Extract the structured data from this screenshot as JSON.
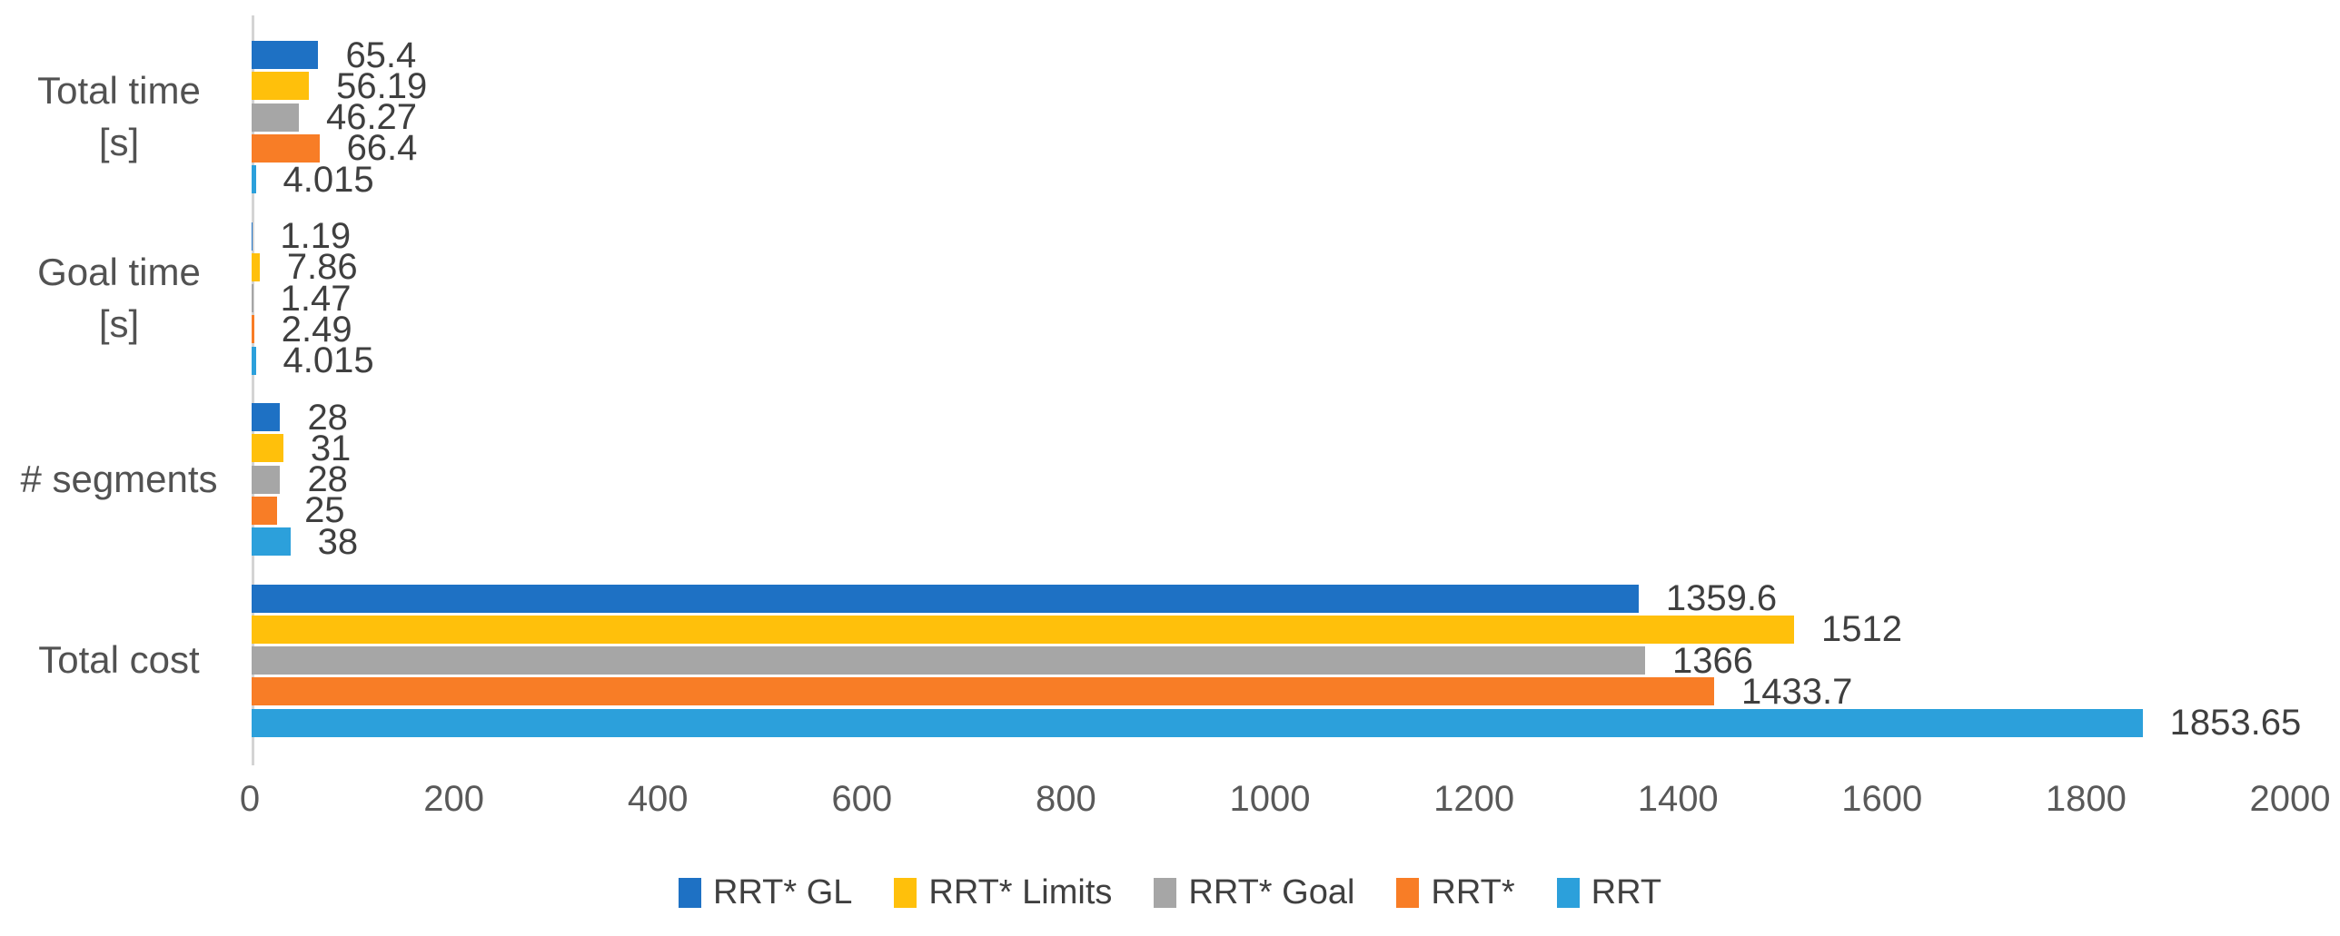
{
  "chart_data": {
    "type": "bar",
    "orientation": "horizontal",
    "title": "",
    "xlabel": "",
    "ylabel": "",
    "xlim": [
      0,
      2000
    ],
    "xticks": [
      "0",
      "200",
      "400",
      "600",
      "800",
      "1000",
      "1200",
      "1400",
      "1600",
      "1800",
      "2000"
    ],
    "grid": false,
    "legend_position": "bottom",
    "categories": [
      {
        "id": "total-time",
        "lines": [
          "Total time",
          "[s]"
        ]
      },
      {
        "id": "goal-time",
        "lines": [
          "Goal time",
          "[s]"
        ]
      },
      {
        "id": "segments",
        "lines": [
          "# segments"
        ]
      },
      {
        "id": "total-cost",
        "lines": [
          "Total cost"
        ]
      }
    ],
    "series": [
      {
        "name": "RRT* GL",
        "color": "#1e71c4",
        "values": [
          65.4,
          1.19,
          28,
          1359.6
        ],
        "labels": [
          "65.4",
          "1.19",
          "28",
          "1359.6"
        ]
      },
      {
        "name": "RRT* Limits",
        "color": "#ffc00b",
        "values": [
          56.19,
          7.86,
          31,
          1512
        ],
        "labels": [
          "56.19",
          "7.86",
          "31",
          "1512"
        ]
      },
      {
        "name": "RRT* Goal",
        "color": "#a6a6a6",
        "values": [
          46.27,
          1.47,
          28,
          1366
        ],
        "labels": [
          "46.27",
          "1.47",
          "28",
          "1366"
        ]
      },
      {
        "name": "RRT*",
        "color": "#f87d26",
        "values": [
          66.4,
          2.49,
          25,
          1433.7
        ],
        "labels": [
          "66.4",
          "2.49",
          "25",
          "1433.7"
        ]
      },
      {
        "name": "RRT",
        "color": "#2ca0db",
        "values": [
          4.015,
          4.015,
          38,
          1853.65
        ],
        "labels": [
          "4.015",
          "4.015",
          "38",
          "1853.65"
        ]
      }
    ],
    "colors": {
      "axis_line": "#d4d4d4",
      "data_label_text": "#3f3f3f",
      "category_text": "#525252",
      "tick_text": "#595959",
      "legend_text": "#404040"
    }
  }
}
